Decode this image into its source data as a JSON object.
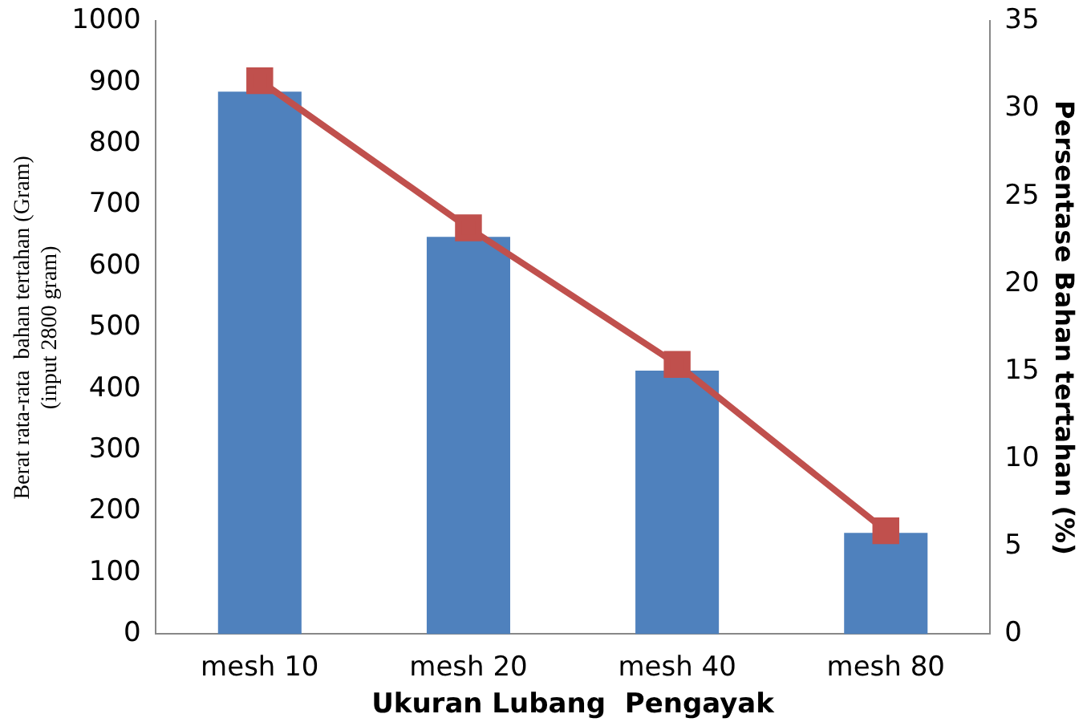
{
  "chart_data": {
    "type": "bar",
    "xlabel": "Ukuran Lubang  Pengayak",
    "ylabel": "Berat rata-rata  bahan tertahan (Gram)\n(input 2800 gram)",
    "y2label": "Persentase Bahan tertahan (%)",
    "categories": [
      "mesh 10",
      "mesh 20",
      "mesh 40",
      "mesh 80"
    ],
    "series": [
      {
        "color": "#4f81bd",
        "values": [
          885,
          648,
          430,
          165
        ]
      },
      {
        "type": "line",
        "axis": "y2",
        "color": "#c0504d",
        "values": [
          31.6,
          23.2,
          15.4,
          5.9
        ]
      }
    ],
    "ylim": [
      0,
      1000
    ],
    "yticks": [
      0,
      100,
      200,
      300,
      400,
      500,
      600,
      700,
      800,
      900,
      1000
    ],
    "y2lim": [
      0,
      35
    ],
    "y2ticks": [
      0,
      5,
      10,
      15,
      20,
      25,
      30,
      35
    ],
    "grid": false,
    "legend": false,
    "marker": "square",
    "line_style": "solid"
  }
}
